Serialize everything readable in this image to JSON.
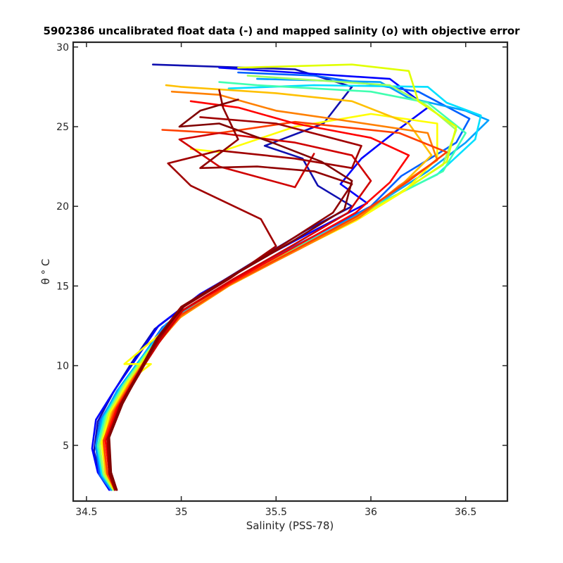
{
  "chart_data": {
    "type": "line",
    "title": "5902386 uncalibrated float data (-) and mapped salinity (o) with objective error",
    "xlabel": "Salinity (PSS-78)",
    "ylabel": "θ ° C",
    "xlim": [
      34.43,
      36.72
    ],
    "ylim": [
      1.5,
      30.3
    ],
    "xticks": [
      34.5,
      35,
      35.5,
      36,
      36.5
    ],
    "xtick_labels": [
      "34.5",
      "35",
      "35.5",
      "36",
      "36.5"
    ],
    "yticks": [
      5,
      10,
      15,
      20,
      25,
      30
    ],
    "ytick_labels": [
      "5",
      "10",
      "15",
      "20",
      "25",
      "30"
    ],
    "grid": false,
    "legend": "none",
    "colormap": [
      "#00008f",
      "#0000ff",
      "#0080ff",
      "#00ffff",
      "#80ff80",
      "#ffff00",
      "#ff8000",
      "#ff0000",
      "#800000"
    ],
    "series": [
      {
        "color": "#1010b0",
        "points": [
          [
            34.63,
            2.2
          ],
          [
            34.57,
            3.2
          ],
          [
            34.54,
            4.6
          ],
          [
            34.56,
            6.5
          ],
          [
            34.64,
            8.3
          ],
          [
            34.74,
            10.2
          ],
          [
            34.86,
            12.3
          ],
          [
            35.08,
            14.3
          ],
          [
            35.38,
            16.5
          ],
          [
            35.66,
            18.5
          ],
          [
            35.9,
            20.0
          ],
          [
            35.72,
            21.3
          ],
          [
            35.64,
            23.0
          ],
          [
            35.44,
            23.8
          ],
          [
            35.75,
            25.2
          ],
          [
            35.9,
            27.5
          ],
          [
            35.6,
            28.6
          ],
          [
            34.85,
            28.9
          ]
        ]
      },
      {
        "color": "#0000ff",
        "points": [
          [
            34.62,
            2.2
          ],
          [
            34.56,
            3.3
          ],
          [
            34.53,
            4.8
          ],
          [
            34.55,
            6.6
          ],
          [
            34.65,
            8.5
          ],
          [
            34.76,
            10.4
          ],
          [
            34.88,
            12.5
          ],
          [
            35.1,
            14.5
          ],
          [
            35.42,
            16.7
          ],
          [
            35.72,
            18.6
          ],
          [
            35.98,
            20.2
          ],
          [
            35.84,
            21.4
          ],
          [
            35.95,
            23.0
          ],
          [
            36.12,
            24.6
          ],
          [
            36.3,
            26.2
          ],
          [
            36.1,
            28.0
          ],
          [
            35.2,
            28.7
          ]
        ]
      },
      {
        "color": "#0060ff",
        "points": [
          [
            34.63,
            2.2
          ],
          [
            34.57,
            3.1
          ],
          [
            34.55,
            4.9
          ],
          [
            34.57,
            6.5
          ],
          [
            34.67,
            8.5
          ],
          [
            34.78,
            10.3
          ],
          [
            34.9,
            12.4
          ],
          [
            35.12,
            14.3
          ],
          [
            35.45,
            16.6
          ],
          [
            35.76,
            18.5
          ],
          [
            36.0,
            20.0
          ],
          [
            36.16,
            21.9
          ],
          [
            36.45,
            24.0
          ],
          [
            36.52,
            25.5
          ],
          [
            36.25,
            27.2
          ],
          [
            35.7,
            28.2
          ],
          [
            35.3,
            28.4
          ]
        ]
      },
      {
        "color": "#00a0ff",
        "points": [
          [
            34.63,
            2.2
          ],
          [
            34.58,
            3.1
          ],
          [
            34.55,
            5.0
          ],
          [
            34.58,
            6.6
          ],
          [
            34.66,
            8.4
          ],
          [
            34.79,
            10.5
          ],
          [
            34.92,
            12.6
          ],
          [
            35.15,
            14.5
          ],
          [
            35.48,
            16.7
          ],
          [
            35.8,
            18.6
          ],
          [
            36.05,
            20.3
          ],
          [
            36.3,
            22.2
          ],
          [
            36.5,
            24.0
          ],
          [
            36.62,
            25.4
          ],
          [
            36.5,
            26.0
          ],
          [
            36.2,
            26.8
          ],
          [
            36.05,
            27.8
          ],
          [
            35.4,
            28.0
          ]
        ]
      },
      {
        "color": "#00e0ff",
        "points": [
          [
            34.64,
            2.2
          ],
          [
            34.58,
            3.2
          ],
          [
            34.56,
            4.9
          ],
          [
            34.59,
            6.7
          ],
          [
            34.68,
            8.6
          ],
          [
            34.8,
            10.6
          ],
          [
            34.93,
            12.6
          ],
          [
            35.16,
            14.6
          ],
          [
            35.5,
            16.8
          ],
          [
            35.82,
            18.7
          ],
          [
            36.08,
            20.4
          ],
          [
            36.35,
            22.0
          ],
          [
            36.55,
            24.2
          ],
          [
            36.58,
            25.7
          ],
          [
            36.4,
            26.5
          ],
          [
            36.3,
            27.5
          ],
          [
            35.7,
            27.6
          ],
          [
            35.25,
            27.4
          ]
        ]
      },
      {
        "color": "#40ffb0",
        "points": [
          [
            34.64,
            2.2
          ],
          [
            34.59,
            3.1
          ],
          [
            34.56,
            5.0
          ],
          [
            34.6,
            6.8
          ],
          [
            34.69,
            8.7
          ],
          [
            34.81,
            10.7
          ],
          [
            34.95,
            12.7
          ],
          [
            35.18,
            14.7
          ],
          [
            35.52,
            16.9
          ],
          [
            35.84,
            18.8
          ],
          [
            36.1,
            20.5
          ],
          [
            36.38,
            22.2
          ],
          [
            36.5,
            24.6
          ],
          [
            36.3,
            26.5
          ],
          [
            36.0,
            27.2
          ],
          [
            35.4,
            27.6
          ],
          [
            35.2,
            27.8
          ]
        ]
      },
      {
        "color": "#a0ff60",
        "points": [
          [
            34.64,
            2.2
          ],
          [
            34.59,
            3.2
          ],
          [
            34.57,
            5.0
          ],
          [
            34.61,
            6.9
          ],
          [
            34.7,
            8.8
          ],
          [
            34.82,
            10.8
          ],
          [
            34.96,
            12.8
          ],
          [
            35.2,
            14.8
          ],
          [
            35.55,
            17.0
          ],
          [
            35.87,
            18.9
          ],
          [
            36.12,
            20.6
          ],
          [
            36.38,
            22.6
          ],
          [
            36.45,
            24.8
          ],
          [
            36.3,
            26.3
          ],
          [
            36.1,
            27.6
          ],
          [
            35.6,
            28.0
          ],
          [
            35.35,
            28.2
          ]
        ]
      },
      {
        "color": "#e0ff00",
        "points": [
          [
            34.64,
            2.3
          ],
          [
            34.6,
            3.2
          ],
          [
            34.58,
            5.1
          ],
          [
            34.62,
            7.0
          ],
          [
            34.72,
            8.9
          ],
          [
            34.83,
            10.9
          ],
          [
            34.97,
            12.9
          ],
          [
            35.22,
            14.9
          ],
          [
            35.57,
            17.1
          ],
          [
            35.9,
            19.0
          ],
          [
            36.15,
            20.8
          ],
          [
            36.4,
            22.8
          ],
          [
            36.45,
            25.0
          ],
          [
            36.25,
            26.6
          ],
          [
            36.2,
            28.5
          ],
          [
            35.9,
            28.9
          ],
          [
            35.3,
            28.7
          ]
        ]
      },
      {
        "color": "#ffff00",
        "points": [
          [
            34.65,
            2.2
          ],
          [
            34.6,
            3.3
          ],
          [
            34.58,
            5.2
          ],
          [
            34.63,
            7.1
          ],
          [
            34.72,
            9.0
          ],
          [
            34.84,
            10.1
          ],
          [
            34.7,
            10.1
          ],
          [
            34.98,
            12.9
          ],
          [
            35.24,
            15.0
          ],
          [
            35.6,
            17.2
          ],
          [
            35.92,
            19.1
          ],
          [
            36.18,
            21.0
          ],
          [
            36.35,
            23.0
          ],
          [
            36.35,
            25.2
          ],
          [
            36.0,
            25.8
          ],
          [
            35.6,
            25.0
          ],
          [
            35.2,
            23.4
          ],
          [
            35.05,
            23.6
          ]
        ]
      },
      {
        "color": "#ffc000",
        "points": [
          [
            34.65,
            2.2
          ],
          [
            34.6,
            3.3
          ],
          [
            34.59,
            5.1
          ],
          [
            34.63,
            7.0
          ],
          [
            34.73,
            9.0
          ],
          [
            34.85,
            11.0
          ],
          [
            34.99,
            13.0
          ],
          [
            35.25,
            15.0
          ],
          [
            35.6,
            17.2
          ],
          [
            35.92,
            19.2
          ],
          [
            36.15,
            21.2
          ],
          [
            36.32,
            23.2
          ],
          [
            36.2,
            25.2
          ],
          [
            35.9,
            26.6
          ],
          [
            35.5,
            27.1
          ],
          [
            35.0,
            27.5
          ],
          [
            34.92,
            27.6
          ]
        ]
      },
      {
        "color": "#ff8000",
        "points": [
          [
            34.65,
            2.2
          ],
          [
            34.61,
            3.3
          ],
          [
            34.59,
            5.2
          ],
          [
            34.64,
            7.1
          ],
          [
            34.74,
            9.1
          ],
          [
            34.85,
            11.1
          ],
          [
            35.0,
            13.1
          ],
          [
            35.26,
            15.1
          ],
          [
            35.62,
            17.3
          ],
          [
            35.94,
            19.3
          ],
          [
            36.15,
            21.3
          ],
          [
            36.35,
            22.9
          ],
          [
            36.3,
            24.6
          ],
          [
            35.85,
            25.4
          ],
          [
            35.5,
            26.0
          ],
          [
            35.2,
            27.0
          ],
          [
            34.95,
            27.2
          ]
        ]
      },
      {
        "color": "#ff4000",
        "points": [
          [
            34.65,
            2.2
          ],
          [
            34.61,
            3.2
          ],
          [
            34.59,
            5.3
          ],
          [
            34.65,
            7.2
          ],
          [
            34.75,
            9.2
          ],
          [
            34.86,
            11.2
          ],
          [
            35.0,
            13.2
          ],
          [
            35.27,
            15.2
          ],
          [
            35.62,
            17.4
          ],
          [
            35.93,
            19.4
          ],
          [
            36.2,
            21.6
          ],
          [
            36.4,
            23.4
          ],
          [
            36.15,
            24.6
          ],
          [
            35.6,
            25.3
          ],
          [
            35.2,
            24.6
          ],
          [
            34.9,
            24.8
          ]
        ]
      },
      {
        "color": "#ff0000",
        "points": [
          [
            34.65,
            2.2
          ],
          [
            34.62,
            3.3
          ],
          [
            34.6,
            5.3
          ],
          [
            34.66,
            7.3
          ],
          [
            34.76,
            9.3
          ],
          [
            34.87,
            11.3
          ],
          [
            35.0,
            13.4
          ],
          [
            35.27,
            15.3
          ],
          [
            35.62,
            17.6
          ],
          [
            35.92,
            19.6
          ],
          [
            36.1,
            21.5
          ],
          [
            36.2,
            23.2
          ],
          [
            36.0,
            24.3
          ],
          [
            35.6,
            25.2
          ],
          [
            35.3,
            26.2
          ],
          [
            35.05,
            26.6
          ]
        ]
      },
      {
        "color": "#d00000",
        "points": [
          [
            34.65,
            2.2
          ],
          [
            34.62,
            3.3
          ],
          [
            34.61,
            5.4
          ],
          [
            34.67,
            7.4
          ],
          [
            34.77,
            9.4
          ],
          [
            34.88,
            11.4
          ],
          [
            35.01,
            13.5
          ],
          [
            35.27,
            15.4
          ],
          [
            35.58,
            17.5
          ],
          [
            35.88,
            19.6
          ],
          [
            36.0,
            21.6
          ],
          [
            35.9,
            23.2
          ],
          [
            35.6,
            24.0
          ],
          [
            35.2,
            24.6
          ],
          [
            34.99,
            24.2
          ],
          [
            35.2,
            22.5
          ],
          [
            35.6,
            21.2
          ],
          [
            35.7,
            23.3
          ]
        ]
      },
      {
        "color": "#a00000",
        "points": [
          [
            34.65,
            2.2
          ],
          [
            34.62,
            3.2
          ],
          [
            34.61,
            5.4
          ],
          [
            34.68,
            7.5
          ],
          [
            34.78,
            9.5
          ],
          [
            34.88,
            11.6
          ],
          [
            35.0,
            13.6
          ],
          [
            35.26,
            15.5
          ],
          [
            35.5,
            17.5
          ],
          [
            35.42,
            19.2
          ],
          [
            35.05,
            21.3
          ],
          [
            34.93,
            22.7
          ],
          [
            35.2,
            23.5
          ],
          [
            35.6,
            23.0
          ],
          [
            35.9,
            22.4
          ],
          [
            35.95,
            23.8
          ],
          [
            35.5,
            25.2
          ],
          [
            35.1,
            25.6
          ]
        ]
      },
      {
        "color": "#900000",
        "points": [
          [
            34.66,
            2.2
          ],
          [
            34.62,
            3.3
          ],
          [
            34.62,
            5.5
          ],
          [
            34.68,
            7.6
          ],
          [
            34.78,
            9.7
          ],
          [
            34.87,
            11.7
          ],
          [
            35.0,
            13.7
          ],
          [
            35.26,
            15.6
          ],
          [
            35.55,
            17.7
          ],
          [
            35.8,
            19.6
          ],
          [
            35.9,
            21.4
          ],
          [
            35.7,
            22.2
          ],
          [
            35.4,
            22.5
          ],
          [
            35.1,
            22.4
          ],
          [
            35.3,
            24.2
          ],
          [
            35.22,
            26.2
          ],
          [
            35.2,
            27.3
          ]
        ]
      },
      {
        "color": "#800000",
        "points": [
          [
            34.66,
            2.2
          ],
          [
            34.63,
            3.3
          ],
          [
            34.62,
            5.5
          ],
          [
            34.69,
            7.6
          ],
          [
            34.79,
            9.8
          ],
          [
            34.88,
            11.8
          ],
          [
            35.02,
            13.8
          ],
          [
            35.28,
            15.7
          ],
          [
            35.6,
            17.9
          ],
          [
            35.86,
            19.8
          ],
          [
            35.9,
            21.6
          ],
          [
            35.74,
            22.8
          ],
          [
            35.48,
            24.0
          ],
          [
            35.2,
            25.2
          ],
          [
            34.99,
            25.0
          ],
          [
            35.1,
            26.0
          ],
          [
            35.3,
            26.7
          ]
        ]
      }
    ]
  }
}
